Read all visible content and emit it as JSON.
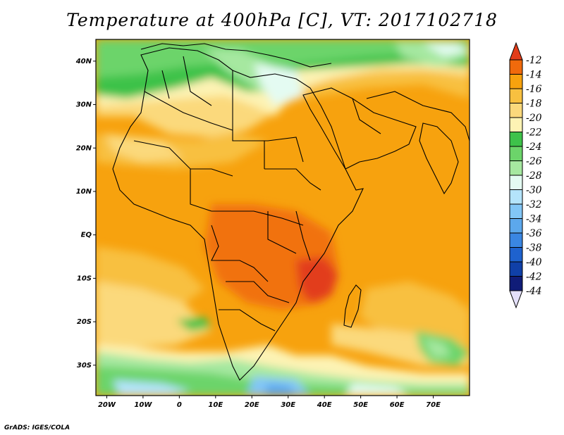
{
  "title": "Temperature at 400hPa [C], VT: 2017102718",
  "credit": "GrADS: IGES/COLA",
  "map": {
    "projection": "latlon",
    "lon_range": [
      -23,
      80
    ],
    "lat_range": [
      -37,
      45
    ],
    "lon_ticks": [
      "20W",
      "10W",
      "0",
      "10E",
      "20E",
      "30E",
      "40E",
      "50E",
      "60E",
      "70E"
    ],
    "lat_ticks": [
      "40N",
      "30N",
      "20N",
      "10N",
      "EQ",
      "10S",
      "20S",
      "30S"
    ],
    "border_color": "#000000"
  },
  "colorbar": {
    "labels": [
      "-12",
      "-14",
      "-16",
      "-18",
      "-20",
      "-22",
      "-24",
      "-26",
      "-28",
      "-30",
      "-32",
      "-34",
      "-36",
      "-38",
      "-40",
      "-42",
      "-44"
    ],
    "colors": [
      "#e23c1a",
      "#f06a0c",
      "#f7a20e",
      "#f8c040",
      "#fbd97c",
      "#fdf3b4",
      "#3ec24a",
      "#6cd46a",
      "#a6e8a0",
      "#e4fbf2",
      "#b4e4fb",
      "#82c6f6",
      "#5ca8ec",
      "#3a86e2",
      "#1e62ce",
      "#1040a8",
      "#101c78",
      "#e4e0fa"
    ]
  }
}
